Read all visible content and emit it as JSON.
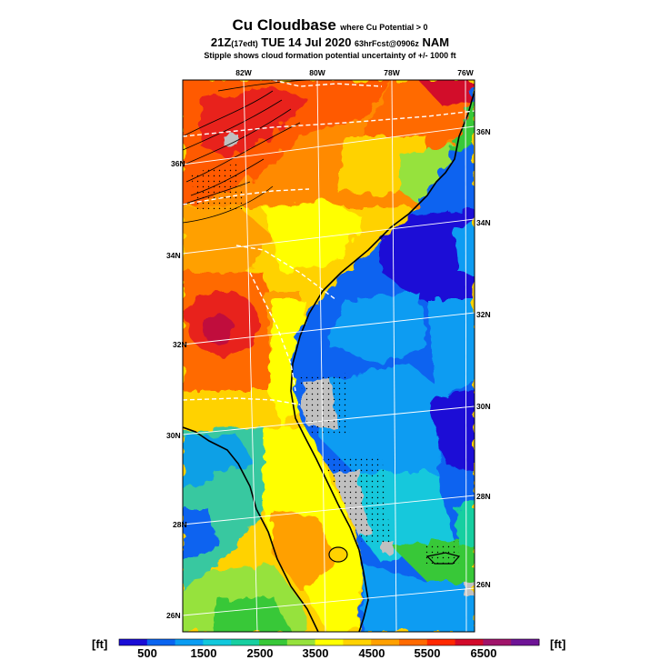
{
  "title": {
    "main": "Cu Cloudbase",
    "qualifier": "where Cu Potential > 0",
    "time_large": "21Z",
    "time_small": "(17edt)",
    "date": "TUE 14 Jul 2020",
    "run_small": "63hrFcst@0906z",
    "model": "NAM",
    "note": "Stipple shows cloud formation potential uncertainty of +/- 1000 ft"
  },
  "map": {
    "top_lon_labels": [
      "82W",
      "80W",
      "78W",
      "76W"
    ],
    "left_lat_labels": [
      "36N",
      "34N",
      "32N",
      "30N",
      "28N",
      "26N"
    ],
    "right_lat_labels": [
      "36N",
      "34N",
      "32N",
      "30N",
      "28N",
      "26N"
    ]
  },
  "colorbar": {
    "unit_left": "[ft]",
    "unit_right": "[ft]",
    "tick_labels": [
      "500",
      "1500",
      "2500",
      "3500",
      "4500",
      "5500",
      "6500"
    ],
    "colors": [
      "#1a0dd6",
      "#0a64f0",
      "#0a9cf2",
      "#12c8dc",
      "#18cfa0",
      "#38c838",
      "#96e23c",
      "#ffff00",
      "#ffd200",
      "#ffa000",
      "#ff6a00",
      "#ff2800",
      "#d20a2a",
      "#a0146a",
      "#6e1496"
    ]
  }
}
